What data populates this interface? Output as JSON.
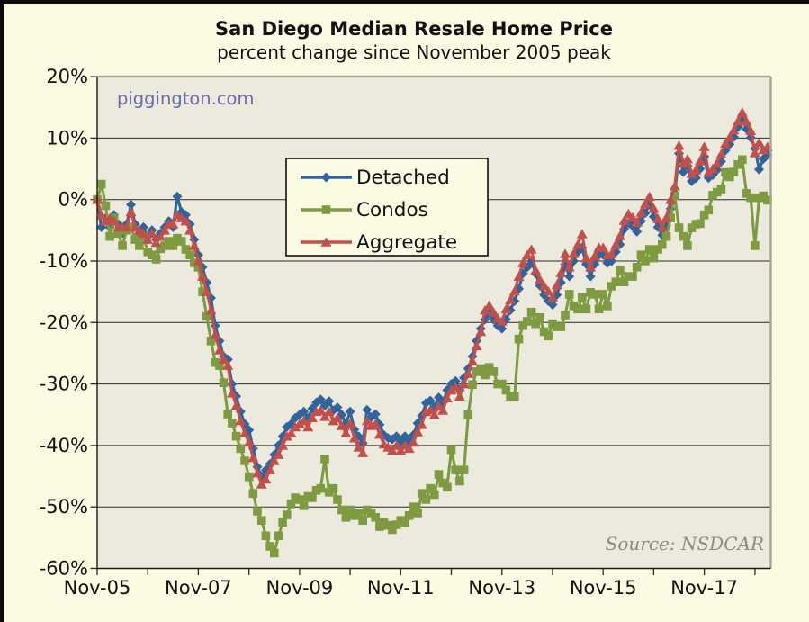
{
  "page": {
    "title": "San Diego Median Resale Home Price",
    "subtitle": "percent change since November 2005 peak",
    "watermark": "piggington.com",
    "source_note": "Source: NSDCAR",
    "colors": {
      "page_bg": "#FBFAE3",
      "plot_bg": "#ECEADC",
      "frame_border": "#000000",
      "watermark_text": "#6B69B5",
      "source_text": "#8B8B84"
    }
  },
  "legend": {
    "items": [
      {
        "label": "Detached",
        "color": "#31639C",
        "marker": "diamond"
      },
      {
        "label": "Condos",
        "color": "#7E9B41",
        "marker": "square"
      },
      {
        "label": "Aggregate",
        "color": "#C14F4B",
        "marker": "triangle"
      }
    ]
  },
  "chart_data": {
    "type": "line",
    "title": "San Diego Median Resale Home Price",
    "subtitle": "percent change since November 2005 peak",
    "x_unit": "month",
    "x_start": "Nov-2005",
    "x_end": "Feb-2019",
    "x_tick_labels": [
      "Nov-05",
      "Nov-07",
      "Nov-09",
      "Nov-11",
      "Nov-13",
      "Nov-15",
      "Nov-17"
    ],
    "x_tick_months": [
      0,
      24,
      48,
      72,
      96,
      120,
      144
    ],
    "x_minor_tick_every_months": 12,
    "x_total_months": 160,
    "y_ticks_percent": [
      20,
      10,
      0,
      -10,
      -20,
      -30,
      -40,
      -50,
      -60
    ],
    "ylim_percent": [
      -60,
      20
    ],
    "grid": true,
    "legend_position": "upper-left-inside",
    "series": [
      {
        "name": "Detached",
        "color": "#31639C",
        "marker": "diamond",
        "values": [
          0,
          -4.5,
          -3,
          -4.5,
          -2.5,
          -4,
          -5.5,
          -4,
          -0.8,
          -4,
          -5.5,
          -4.5,
          -6,
          -5,
          -6.5,
          -5.5,
          -4.5,
          -3.5,
          -4.5,
          0.5,
          -2,
          -2.5,
          -4,
          -6.5,
          -9,
          -11,
          -13.5,
          -16,
          -20.5,
          -23,
          -25.5,
          -26,
          -30,
          -32,
          -34.5,
          -36.5,
          -37.5,
          -40.5,
          -43.5,
          -45,
          -44,
          -43,
          -41.5,
          -40,
          -38.5,
          -37,
          -36.5,
          -35.5,
          -35,
          -34.5,
          -35.5,
          -34,
          -33,
          -32.5,
          -33.5,
          -32.8,
          -34.3,
          -33.8,
          -35,
          -36.5,
          -34.5,
          -37.4,
          -38.5,
          -39.6,
          -34.2,
          -35.4,
          -34.9,
          -36.6,
          -38.3,
          -38.8,
          -39,
          -38.5,
          -39.3,
          -38.5,
          -39.3,
          -38.3,
          -36.4,
          -35.2,
          -33.1,
          -32.7,
          -33.7,
          -32.2,
          -33,
          -31,
          -30,
          -29.5,
          -31,
          -29,
          -27.5,
          -25.5,
          -23,
          -21,
          -19.5,
          -18.5,
          -19.5,
          -20.5,
          -21,
          -19.5,
          -18,
          -16.5,
          -14.5,
          -12,
          -11,
          -10,
          -12,
          -14,
          -15.5,
          -16.5,
          -17.1,
          -15.5,
          -13.5,
          -10.5,
          -12.5,
          -10,
          -8.5,
          -7.8,
          -10.5,
          -12.5,
          -10.5,
          -9,
          -9,
          -10.3,
          -10,
          -8.5,
          -7.3,
          -4.8,
          -3.8,
          -4.3,
          -5.2,
          -3.5,
          -2.2,
          -0.8,
          -2.8,
          -4.5,
          -5.8,
          -4.2,
          -1.5,
          1,
          7.5,
          4.5,
          5.5,
          3,
          3.5,
          5,
          7,
          3.5,
          4,
          4.8,
          6.2,
          8,
          9,
          10.2,
          11.8,
          13.3,
          11.5,
          10.1,
          8.3,
          4.9,
          6.6,
          7.3
        ]
      },
      {
        "name": "Condos",
        "color": "#7E9B41",
        "marker": "square",
        "values": [
          0,
          2.5,
          -1,
          -6,
          -3,
          -5.5,
          -7.5,
          -5,
          -4.5,
          -6.5,
          -7.5,
          -6,
          -8.5,
          -9,
          -9.7,
          -8,
          -7.5,
          -6.8,
          -7.5,
          -6.3,
          -6.8,
          -8.1,
          -9,
          -10.3,
          -11,
          -15,
          -19,
          -23,
          -26.5,
          -27,
          -29.8,
          -34.9,
          -36.4,
          -38.5,
          -40.5,
          -42.5,
          -45.1,
          -47.8,
          -50.7,
          -52.2,
          -54.7,
          -56.4,
          -57.5,
          -54.7,
          -52.5,
          -51.3,
          -49.5,
          -48.5,
          -48.8,
          -49.8,
          -48.3,
          -48.5,
          -47.3,
          -47,
          -42.2,
          -47.6,
          -47,
          -48.8,
          -50.5,
          -51.7,
          -50.5,
          -51.4,
          -51,
          -52.2,
          -50.5,
          -51,
          -51.7,
          -53.2,
          -52.5,
          -53,
          -53.7,
          -52.9,
          -52.2,
          -52.5,
          -51.4,
          -50,
          -51,
          -47.8,
          -48.8,
          -47,
          -48,
          -44.7,
          -46.1,
          -46.8,
          -40.7,
          -44,
          -45.8,
          -44,
          -35,
          -30.1,
          -28,
          -27.5,
          -28.5,
          -27.3,
          -28,
          -30,
          -30,
          -31,
          -32,
          -32,
          -22.7,
          -20.5,
          -19.8,
          -18.3,
          -20.2,
          -19.2,
          -21.5,
          -22.2,
          -20.2,
          -20.7,
          -20.7,
          -18.8,
          -15.4,
          -17.3,
          -17.8,
          -15.9,
          -17.8,
          -15.1,
          -15.4,
          -17.8,
          -15.4,
          -17.3,
          -14.1,
          -13.4,
          -11.5,
          -13.4,
          -12.5,
          -12.5,
          -11,
          -9,
          -10,
          -8.1,
          -9.5,
          -8.1,
          -7.3,
          -6,
          -3,
          0.6,
          -4.6,
          -6,
          -7.5,
          -4.6,
          -4,
          -3.9,
          -2.5,
          -1.7,
          0.7,
          1.2,
          1.7,
          4.4,
          3.7,
          4.5,
          5.7,
          6.5,
          1,
          0.3,
          -7.5,
          0.3,
          0.6,
          -0.1
        ]
      },
      {
        "name": "Aggregate",
        "color": "#C14F4B",
        "marker": "triangle",
        "values": [
          0,
          -2.5,
          -3.5,
          -3,
          -3.5,
          -4.5,
          -4.5,
          -4.5,
          -2,
          -4.5,
          -5,
          -5.5,
          -6.5,
          -5.5,
          -7,
          -6,
          -5,
          -4,
          -4,
          -2.5,
          -3,
          -3.5,
          -5,
          -7.5,
          -10,
          -12.5,
          -15,
          -18,
          -22,
          -24.5,
          -26,
          -27,
          -31.5,
          -33.5,
          -36,
          -38,
          -39.5,
          -42,
          -44.5,
          -46.3,
          -45.5,
          -44,
          -42.5,
          -41.5,
          -40,
          -38.5,
          -38,
          -37,
          -36.5,
          -36,
          -37,
          -35.5,
          -34.5,
          -34.3,
          -35.3,
          -34.5,
          -36,
          -35.5,
          -36.8,
          -38,
          -36.4,
          -38.8,
          -40.3,
          -41.2,
          -36,
          -36.8,
          -36.5,
          -38.2,
          -39.8,
          -40.3,
          -40.8,
          -40,
          -40.8,
          -40,
          -40.5,
          -39.5,
          -37.8,
          -36.6,
          -34.5,
          -34.2,
          -35,
          -33.6,
          -34.3,
          -32.3,
          -31,
          -30.5,
          -32,
          -30,
          -28.3,
          -26.3,
          -23.8,
          -21.5,
          -18,
          -17.2,
          -18.3,
          -19.3,
          -19.8,
          -17.8,
          -16.3,
          -14.9,
          -12.5,
          -10.3,
          -9,
          -8.1,
          -11.5,
          -13,
          -14,
          -14.9,
          -15.9,
          -13.9,
          -11.9,
          -8.8,
          -11,
          -8.8,
          -7.3,
          -5.6,
          -9.5,
          -11,
          -9.2,
          -7.8,
          -7.8,
          -9,
          -8.8,
          -7.3,
          -5.9,
          -3.4,
          -2.3,
          -2.9,
          -3.7,
          -2.1,
          -0.7,
          0.5,
          -1.4,
          -3.1,
          -4.5,
          -2.9,
          0,
          2.2,
          8.8,
          5.9,
          6.6,
          4.2,
          4.8,
          6.3,
          8.6,
          4.4,
          5,
          5.9,
          7.4,
          9.1,
          10.1,
          11.3,
          12.8,
          14.2,
          12.7,
          11.2,
          7.6,
          9.3,
          8.1,
          8.6
        ]
      }
    ]
  }
}
